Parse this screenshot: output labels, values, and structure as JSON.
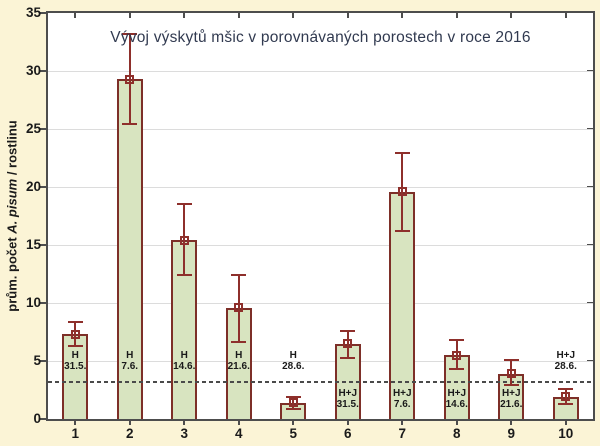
{
  "chart_data": {
    "type": "bar",
    "title": "Vývoj výskytů mšic v porovnávaných porostech v roce 2016",
    "ylabel": {
      "prefix": "prům. počet ",
      "species_italic": "A. pisum",
      "suffix": " / rostlinu"
    },
    "categories": [
      "1",
      "2",
      "3",
      "4",
      "5",
      "6",
      "7",
      "8",
      "9",
      "10"
    ],
    "values": [
      7.3,
      29.3,
      15.4,
      9.6,
      1.4,
      6.5,
      19.6,
      5.5,
      3.9,
      1.9
    ],
    "error_upper": [
      8.4,
      33.2,
      18.5,
      12.4,
      1.9,
      7.6,
      22.9,
      6.8,
      5.1,
      2.6
    ],
    "error_lower": [
      6.3,
      25.4,
      12.4,
      6.6,
      0.9,
      5.3,
      16.2,
      4.3,
      2.9,
      1.3
    ],
    "bar_labels": [
      [
        "H",
        "31.5."
      ],
      [
        "H",
        "7.6."
      ],
      [
        "H",
        "14.6."
      ],
      [
        "H",
        "21.6."
      ],
      [
        "H",
        "28.6."
      ],
      [
        "H+J",
        "31.5."
      ],
      [
        "H+J",
        "7.6."
      ],
      [
        "H+J",
        "14.6."
      ],
      [
        "H+J",
        "21.6."
      ],
      [
        "H+J",
        "28.6."
      ]
    ],
    "bar_label_anchor_y": [
      5.0,
      5.0,
      5.0,
      5.0,
      5.0,
      1.72,
      1.72,
      1.72,
      1.72,
      5.0
    ],
    "reference_line_y": 3.2,
    "ylim": [
      0,
      35
    ],
    "yticks": [
      0,
      5,
      10,
      15,
      20,
      25,
      30,
      35
    ],
    "grid": "horizontal",
    "legend": "none"
  },
  "colors": {
    "background": "#fbf4d6",
    "plot_background": "#ffffff",
    "gridline": "#dcdcdc",
    "frame": "#4d4d4d",
    "bar_fill": "#d8e4c0",
    "bar_border": "#7d2f28",
    "error_bar": "#8e2f2b",
    "reference_line": "#4a4a4a",
    "text": "#1a1a1a",
    "title_text": "#313a50"
  }
}
